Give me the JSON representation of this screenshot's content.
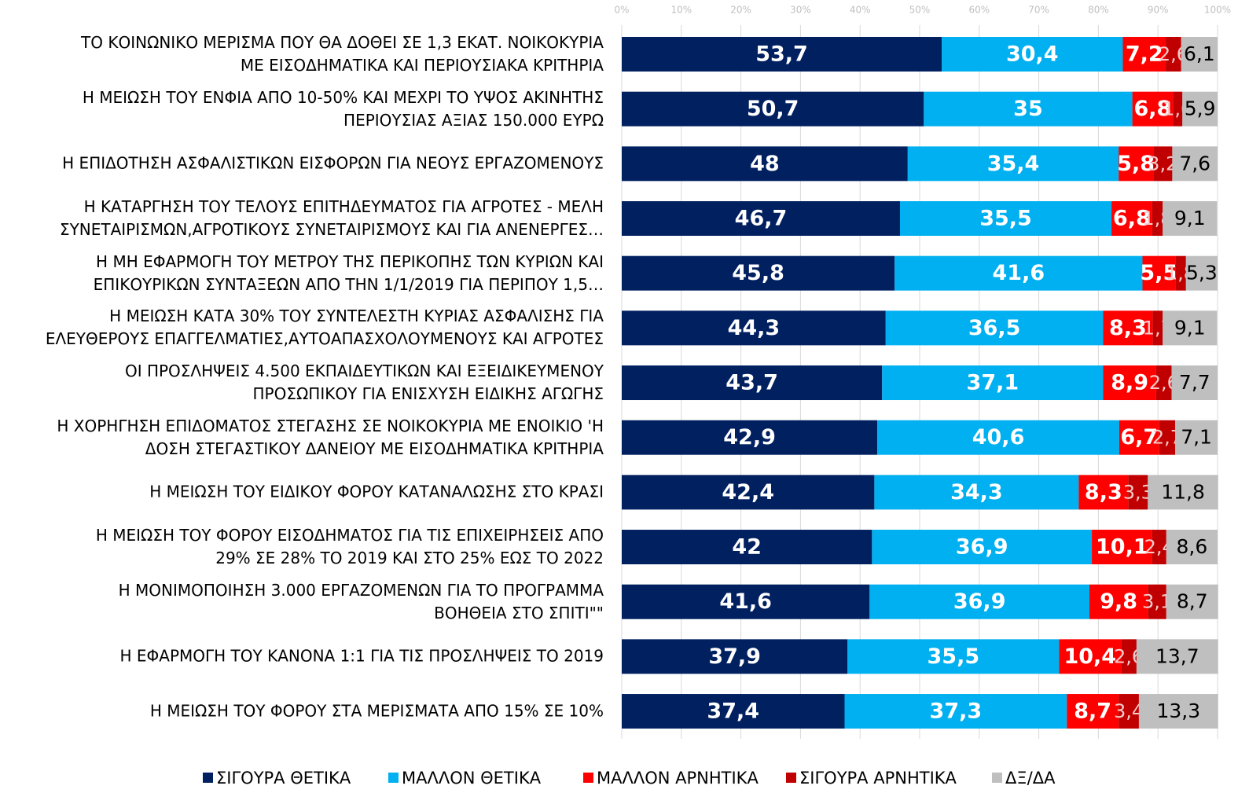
{
  "chart_data": {
    "type": "stacked_bar_horizontal",
    "categories": [
      "ΤΟ ΚΟΙΝΩΝΙΚΟ ΜΕΡΙΣΜΑ ΠΟΥ ΘΑ ΔΟΘΕΙ ΣΕ 1,3 ΕΚΑΤ. ΝΟΙΚΟΚΥΡΙΑ\nΜΕ ΕΙΣΟΔΗΜΑΤΙΚΑ ΚΑΙ ΠΕΡΙΟΥΣΙΑΚΑ ΚΡΙΤΗΡΙΑ",
      "Η ΜΕΙΩΣΗ ΤΟΥ ΕΝΦΙΑ ΑΠΟ 10-50% ΚΑΙ ΜΕΧΡΙ ΤΟ ΥΨΟΣ ΑΚΙΝΗΤΗΣ\nΠΕΡΙΟΥΣΙΑΣ ΑΞΙΑΣ 150.000 ΕΥΡΩ",
      "Η ΕΠΙΔΟΤΗΣΗ ΑΣΦΑΛΙΣΤΙΚΩΝ ΕΙΣΦΟΡΩΝ ΓΙΑ ΝΕΟΥΣ ΕΡΓΑΖΟΜΕΝΟΥΣ",
      "Η ΚΑΤΑΡΓΗΣΗ ΤΟΥ ΤΕΛΟΥΣ ΕΠΙΤΗΔΕΥΜΑΤΟΣ ΓΙΑ ΑΓΡΟΤΕΣ - ΜΕΛΗ\nΣΥΝΕΤΑΙΡΙΣΜΩΝ,ΑΓΡΟΤΙΚΟΥΣ ΣΥΝΕΤΑΙΡΙΣΜΟΥΣ ΚΑΙ ΓΙΑ ΑΝΕΝΕΡΓΕΣ…",
      "Η ΜΗ ΕΦΑΡΜΟΓΗ ΤΟΥ ΜΕΤΡΟΥ ΤΗΣ ΠΕΡΙΚΟΠΗΣ ΤΩΝ ΚΥΡΙΩΝ ΚΑΙ\nΕΠΙΚΟΥΡΙΚΩΝ ΣΥΝΤΑΞΕΩΝ ΑΠΟ ΤΗΝ 1/1/2019 ΓΙΑ ΠΕΡΙΠΟΥ 1,5…",
      "Η ΜΕΙΩΣΗ ΚΑΤΑ 30% ΤΟΥ ΣΥΝΤΕΛΕΣΤΗ ΚΥΡΙΑΣ ΑΣΦΑΛΙΣΗΣ ΓΙΑ\nΕΛΕΥΘΕΡΟΥΣ ΕΠΑΓΓΕΛΜΑΤΙΕΣ,ΑΥΤΟΑΠΑΣΧΟΛΟΥΜΕΝΟΥΣ ΚΑΙ ΑΓΡΟΤΕΣ",
      "ΟΙ ΠΡΟΣΛΗΨΕΙΣ 4.500 ΕΚΠΑΙΔΕΥΤΙΚΩΝ ΚΑΙ ΕΞΕΙΔΙΚΕΥΜΕΝΟΥ\nΠΡΟΣΩΠΙΚΟΥ ΓΙΑ ΕΝΙΣΧΥΣΗ ΕΙΔΙΚΗΣ ΑΓΩΓΗΣ",
      "Η ΧΟΡΗΓΗΣΗ ΕΠΙΔΟΜΑΤΟΣ ΣΤΕΓΑΣΗΣ ΣΕ ΝΟΙΚΟΚΥΡΙΑ ΜΕ ΕΝΟΙΚΙΟ 'Η\nΔΟΣΗ ΣΤΕΓΑΣΤΙΚΟΥ ΔΑΝΕΙΟΥ ΜΕ ΕΙΣΟΔΗΜΑΤΙΚΑ ΚΡΙΤΗΡΙΑ",
      "Η ΜΕΙΩΣΗ ΤΟΥ ΕΙΔΙΚΟΥ ΦΟΡΟΥ ΚΑΤΑΝΑΛΩΣΗΣ ΣΤΟ ΚΡΑΣΙ",
      "Η ΜΕΙΩΣΗ ΤΟΥ ΦΟΡΟΥ ΕΙΣΟΔΗΜΑΤΟΣ ΓΙΑ ΤΙΣ ΕΠΙΧΕΙΡΗΣΕΙΣ ΑΠΟ\n29% ΣΕ 28% ΤΟ 2019 ΚΑΙ ΣΤΟ 25% ΕΩΣ ΤΟ 2022",
      "Η ΜΟΝΙΜΟΠΟΙΗΣΗ 3.000 ΕΡΓΑΖΟΜΕΝΩΝ ΓΙΑ ΤΟ ΠΡΟΓΡΑΜΜΑ\nΒΟΗΘΕΙΑ ΣΤΟ ΣΠΙΤΙ\"\"",
      "Η ΕΦΑΡΜΟΓΗ ΤΟΥ ΚΑΝΟΝΑ 1:1 ΓΙΑ ΤΙΣ ΠΡΟΣΛΗΨΕΙΣ ΤΟ 2019",
      "Η ΜΕΙΩΣΗ ΤΟΥ ΦΟΡΟΥ ΣΤΑ ΜΕΡΙΣΜΑΤΑ ΑΠΟ 15% ΣΕ 10%"
    ],
    "series": [
      {
        "name": "ΣΙΓΟΥΡΑ ΘΕΤΙΚΑ",
        "color": "#002060",
        "values": [
          53.7,
          50.7,
          48,
          46.7,
          45.8,
          44.3,
          43.7,
          42.9,
          42.4,
          42,
          41.6,
          37.9,
          37.4
        ],
        "value_labels": [
          "53,7",
          "50,7",
          "48",
          "46,7",
          "45,8",
          "44,3",
          "43,7",
          "42,9",
          "42,4",
          "42",
          "41,6",
          "37,9",
          "37,4"
        ]
      },
      {
        "name": "ΜΑΛΛΟΝ ΘΕΤΙΚΑ",
        "color": "#00b0f0",
        "values": [
          30.4,
          35,
          35.4,
          35.5,
          41.6,
          36.5,
          37.1,
          40.6,
          34.3,
          36.9,
          36.9,
          35.5,
          37.3
        ],
        "value_labels": [
          "30,4",
          "35",
          "35,4",
          "35,5",
          "41,6",
          "36,5",
          "37,1",
          "40,6",
          "34,3",
          "36,9",
          "36,9",
          "35,5",
          "37,3"
        ]
      },
      {
        "name": "ΜΑΛΛΟΝ ΑΡΝΗΤΙΚΑ",
        "color": "#ff0000",
        "values": [
          7.2,
          6.8,
          5.8,
          6.8,
          5.5,
          8.3,
          8.9,
          6.7,
          8.3,
          10.1,
          9.8,
          10.4,
          8.7
        ],
        "value_labels": [
          "7,2",
          "6,8",
          "5,8",
          "6,8",
          "5,5",
          "8,3",
          "8,9",
          "6,7",
          "8,3",
          "10,1",
          "9,8",
          "10,4",
          "8,7"
        ]
      },
      {
        "name": "ΣΙΓΟΥΡΑ ΑΡΝΗΤΙΚΑ",
        "color": "#c00000",
        "values": [
          2.6,
          1.6,
          3.2,
          1.8,
          1.8,
          1.7,
          2.6,
          2.7,
          3.3,
          2.4,
          3.1,
          2.6,
          3.4
        ],
        "value_labels": [
          "2,6",
          "1,6",
          "3,2",
          "1,8",
          "1,8",
          "1,7",
          "2,6",
          "2,7",
          "3,3",
          "2,4",
          "3,1",
          "2,6",
          "3,4"
        ]
      },
      {
        "name": "ΔΞ/ΔΑ",
        "color": "#bfbfbf",
        "values": [
          6.1,
          5.9,
          7.6,
          9.1,
          5.3,
          9.1,
          7.7,
          7.1,
          11.8,
          8.6,
          8.7,
          13.7,
          13.3
        ],
        "value_labels": [
          "6,1",
          "5,9",
          "7,6",
          "9,1",
          "5,3",
          "9,1",
          "7,7",
          "7,1",
          "11,8",
          "8,6",
          "8,7",
          "13,7",
          "13,3"
        ]
      }
    ],
    "xlim": [
      0,
      100
    ],
    "xticks": [
      {
        "value": 0,
        "label": "0%"
      },
      {
        "value": 10,
        "label": "10%"
      },
      {
        "value": 20,
        "label": "20%"
      },
      {
        "value": 30,
        "label": "30%"
      },
      {
        "value": 40,
        "label": "40%"
      },
      {
        "value": 50,
        "label": "50%"
      },
      {
        "value": 60,
        "label": "60%"
      },
      {
        "value": 70,
        "label": "70%"
      },
      {
        "value": 80,
        "label": "80%"
      },
      {
        "value": 90,
        "label": "90%"
      },
      {
        "value": 100,
        "label": "100%"
      }
    ],
    "grid": true,
    "legend": "bottom"
  }
}
